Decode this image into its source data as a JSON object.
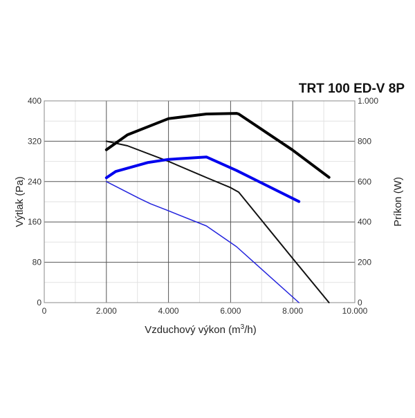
{
  "chart_data": {
    "type": "line",
    "title": "TRT 100 ED-V 8P",
    "xlabel": "Vzduchový výkon (m³/h)",
    "xlabel_main": "Vzduchový výkon (m",
    "xlabel_sup": "3",
    "xlabel_end": "/h)",
    "ylabel": "Výtlak (Pa)",
    "y2label": "Príkon (W)",
    "xlim": [
      0,
      10000
    ],
    "ylim": [
      0,
      400
    ],
    "y2lim": [
      0,
      1000
    ],
    "grid": true,
    "x_ticks": [
      0,
      2000,
      4000,
      6000,
      8000,
      10000
    ],
    "x_tick_labels": [
      "0",
      "2.000",
      "4.000",
      "6.000",
      "8.000",
      "10.000"
    ],
    "y_ticks": [
      0,
      80,
      160,
      240,
      320,
      400
    ],
    "y_tick_labels": [
      "0",
      "80",
      "160",
      "240",
      "320",
      "400"
    ],
    "y2_ticks": [
      0,
      200,
      400,
      600,
      800,
      1000
    ],
    "y2_tick_labels": [
      "0",
      "200",
      "400",
      "600",
      "800",
      "1.000"
    ],
    "series": [
      {
        "name": "pressure-black",
        "axis": "left",
        "color": "#111111",
        "width": 2,
        "x": [
          2000,
          2680,
          4000,
          5220,
          6000,
          6260,
          7980,
          9170
        ],
        "y": [
          320,
          311,
          280,
          248,
          228,
          219,
          89,
          0
        ]
      },
      {
        "name": "pressure-blue",
        "axis": "left",
        "color": "#2222dd",
        "width": 1.5,
        "x": [
          2000,
          3050,
          3420,
          4000,
          5220,
          6190,
          8200
        ],
        "y": [
          240,
          207,
          196,
          182,
          152,
          111,
          0
        ]
      },
      {
        "name": "power-black",
        "axis": "right",
        "color": "#000000",
        "width": 4,
        "x": [
          2000,
          2680,
          4000,
          5220,
          6190,
          6260,
          7980,
          9170
        ],
        "y": [
          758,
          832,
          912,
          935,
          938,
          935,
          758,
          621
        ]
      },
      {
        "name": "power-blue",
        "axis": "right",
        "color": "#0000ee",
        "width": 4,
        "x": [
          2000,
          2300,
          3350,
          4000,
          5220,
          6190,
          8200
        ],
        "y": [
          619,
          650,
          695,
          710,
          722,
          655,
          501
        ]
      }
    ]
  }
}
